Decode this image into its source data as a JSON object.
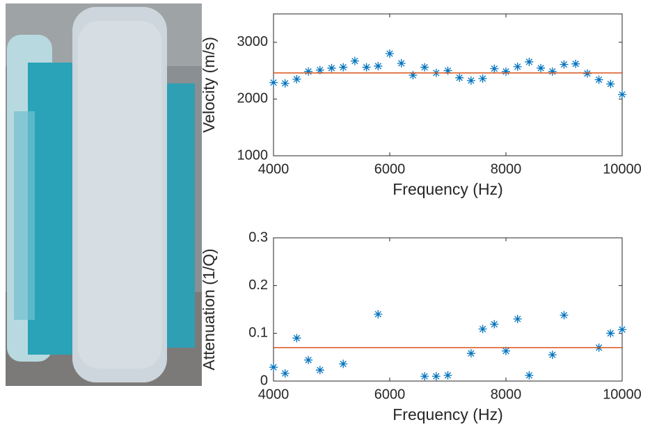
{
  "chart_data": [
    {
      "type": "scatter",
      "xlabel": "Frequency (Hz)",
      "ylabel": "Velocity (m/s)",
      "xlim": [
        4000,
        10000
      ],
      "xticks": [
        4000,
        6000,
        8000,
        10000
      ],
      "ylim": [
        1000,
        3500
      ],
      "yticks": [
        1000,
        2000,
        3000
      ],
      "series": [
        {
          "color": "#0072bd",
          "marker": "asterisk",
          "x": [
            4000,
            4200,
            4400,
            4600,
            4800,
            5000,
            5200,
            5400,
            5600,
            5800,
            6000,
            6200,
            6400,
            6600,
            6800,
            7000,
            7200,
            7400,
            7600,
            7800,
            8000,
            8200,
            8400,
            8600,
            8800,
            9000,
            9200,
            9400,
            9600,
            9800,
            10000
          ],
          "values": [
            2290,
            2276,
            2350,
            2485,
            2510,
            2545,
            2560,
            2670,
            2560,
            2580,
            2800,
            2630,
            2420,
            2560,
            2460,
            2500,
            2375,
            2325,
            2360,
            2535,
            2485,
            2570,
            2655,
            2545,
            2485,
            2610,
            2620,
            2450,
            2340,
            2265,
            2080
          ]
        },
        {
          "color": "#d95319",
          "marker": "line",
          "x": [
            4000,
            10000
          ],
          "values": [
            2460,
            2460
          ]
        }
      ]
    },
    {
      "type": "scatter",
      "xlabel": "Frequency (Hz)",
      "ylabel": "Attenuation (1/Q)",
      "xlim": [
        4000,
        10000
      ],
      "xticks": [
        4000,
        6000,
        8000,
        10000
      ],
      "ylim": [
        0,
        0.3
      ],
      "yticks": [
        0,
        0.1,
        0.2,
        0.3
      ],
      "series": [
        {
          "color": "#0072bd",
          "marker": "asterisk",
          "x": [
            4000,
            4200,
            4400,
            4600,
            4800,
            5200,
            5800,
            6600,
            6800,
            7000,
            7400,
            7600,
            7800,
            8000,
            8200,
            8400,
            8800,
            9000,
            9600,
            9800,
            10000
          ],
          "values": [
            0.029,
            0.016,
            0.09,
            0.044,
            0.023,
            0.036,
            0.14,
            0.01,
            0.01,
            0.012,
            0.058,
            0.109,
            0.119,
            0.063,
            0.13,
            0.012,
            0.055,
            0.138,
            0.07,
            0.1,
            0.108
          ]
        },
        {
          "color": "#d95319",
          "marker": "line",
          "x": [
            4000,
            10000
          ],
          "values": [
            0.07,
            0.07
          ]
        }
      ]
    }
  ]
}
